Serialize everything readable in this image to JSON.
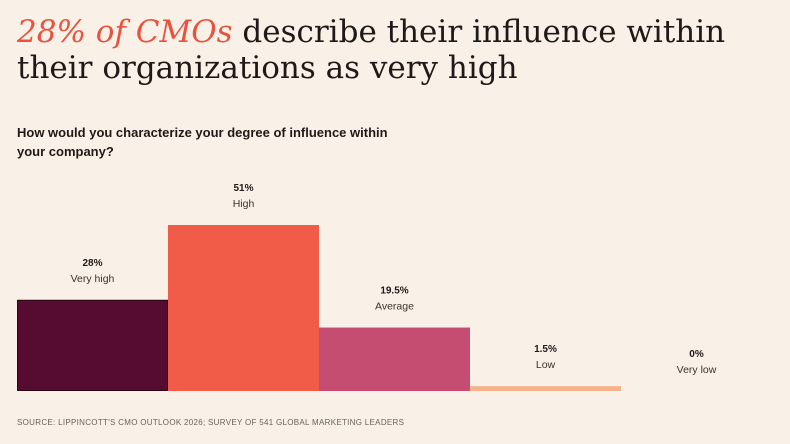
{
  "headline": {
    "accent": "28% of CMOs",
    "rest": " describe their influence within their organizations as very high"
  },
  "question": "How would you characterize your degree of influence within your company?",
  "source": "SOURCE: LIPPINCOTT'S CMO OUTLOOK 2026; SURVEY OF 541 GLOBAL MARKETING LEADERS",
  "colors": {
    "background": "#f9f1e7",
    "accent": "#e8533f"
  },
  "chart_data": {
    "type": "bar",
    "categories": [
      "Very high",
      "High",
      "Average",
      "Low",
      "Very low"
    ],
    "values": [
      28,
      51,
      19.5,
      1.5,
      0
    ],
    "value_labels": [
      "28%",
      "51%",
      "19.5%",
      "1.5%",
      "0%"
    ],
    "colors": [
      "#560c31",
      "#f05c48",
      "#c64d72",
      "#f5b38c",
      "#e8c7a8"
    ],
    "title": "How would you characterize your degree of influence within your company?",
    "xlabel": "",
    "ylabel": "",
    "ylim": [
      0,
      51
    ],
    "grid": false,
    "legend": "none"
  }
}
